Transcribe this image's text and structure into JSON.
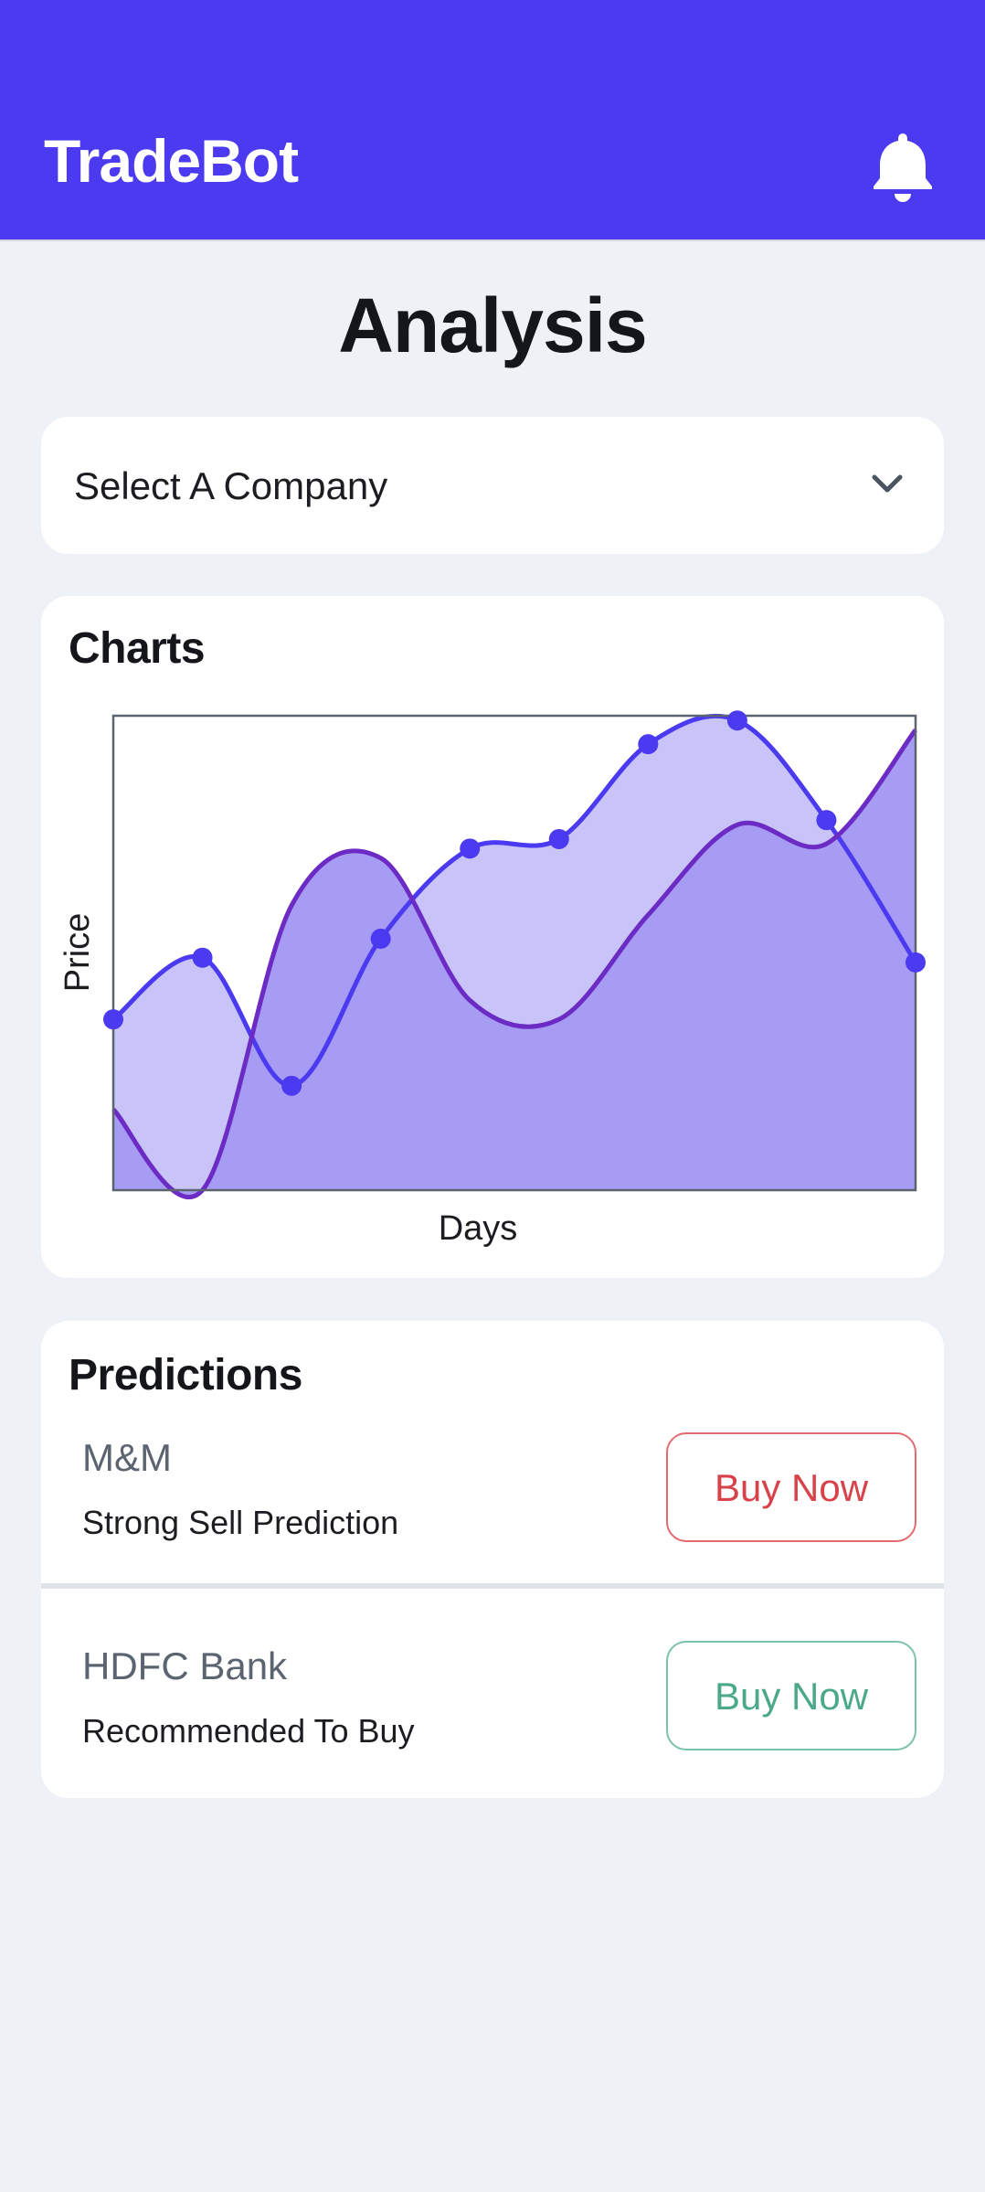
{
  "app": {
    "title": "TradeBot",
    "bell_icon": "bell-icon"
  },
  "page": {
    "title": "Analysis"
  },
  "company_select": {
    "label": "Select A Company",
    "icon": "chevron-down-icon"
  },
  "charts": {
    "title": "Charts"
  },
  "chart_data": {
    "type": "area",
    "title": "",
    "xlabel": "Days",
    "ylabel": "Price",
    "xlim": [
      0,
      9
    ],
    "ylim": [
      0,
      100
    ],
    "grid": false,
    "series": [
      {
        "x": [
          0,
          1,
          2,
          3,
          4,
          5,
          6,
          7,
          8,
          9
        ],
        "y": [
          36,
          49,
          22,
          53,
          72,
          74,
          94,
          99,
          78,
          48
        ],
        "color": "#4b3aef",
        "fill": "#c8c4f8",
        "markers": true
      },
      {
        "x": [
          0,
          1,
          2,
          3,
          4,
          5,
          6,
          7,
          8,
          9
        ],
        "y": [
          17,
          0,
          60,
          70,
          40,
          36,
          58,
          77,
          73,
          97
        ],
        "color": "#6b2bc4",
        "fill": "#a69cf4",
        "markers": false
      }
    ]
  },
  "predictions": {
    "title": "Predictions",
    "items": [
      {
        "company": "M&M",
        "status": "Strong Sell Prediction",
        "button": "Buy Now",
        "color": "#d8424a"
      },
      {
        "company": "HDFC Bank",
        "status": "Recommended To Buy",
        "button": "Buy Now",
        "color": "#4ba88a"
      }
    ]
  }
}
